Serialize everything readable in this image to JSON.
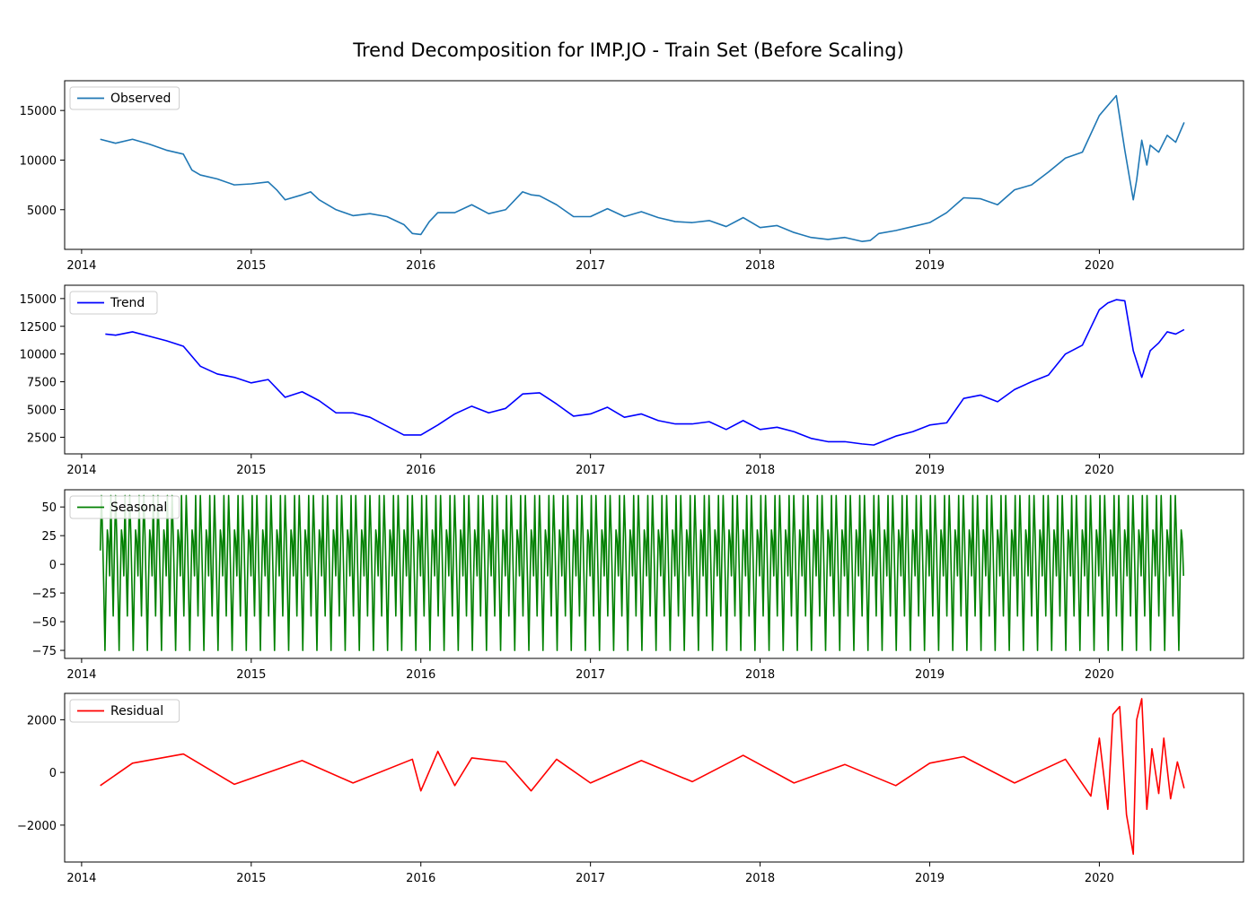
{
  "figure_title": "Trend Decomposition for IMP.JO - Train Set (Before Scaling)",
  "chart_data": [
    {
      "type": "line",
      "name": "observed",
      "legend": "Observed",
      "color": "#1f77b4",
      "xlim": [
        2013.9,
        2020.85
      ],
      "x_ticks": [
        2014,
        2015,
        2016,
        2017,
        2018,
        2019,
        2020
      ],
      "x_tick_labels": [
        "2014",
        "2015",
        "2016",
        "2017",
        "2018",
        "2019",
        "2020"
      ],
      "ylim": [
        1000,
        18000
      ],
      "y_ticks": [
        5000,
        10000,
        15000
      ],
      "y_tick_labels": [
        "5000",
        "10000",
        "15000"
      ],
      "legend_position": "upper-left",
      "x": [
        2014.11,
        2014.2,
        2014.3,
        2014.4,
        2014.5,
        2014.6,
        2014.65,
        2014.7,
        2014.8,
        2014.9,
        2015.0,
        2015.1,
        2015.15,
        2015.2,
        2015.3,
        2015.35,
        2015.4,
        2015.5,
        2015.6,
        2015.7,
        2015.8,
        2015.9,
        2015.95,
        2016.0,
        2016.05,
        2016.1,
        2016.2,
        2016.3,
        2016.4,
        2016.5,
        2016.6,
        2016.65,
        2016.7,
        2016.8,
        2016.9,
        2017.0,
        2017.1,
        2017.2,
        2017.3,
        2017.4,
        2017.5,
        2017.6,
        2017.7,
        2017.8,
        2017.9,
        2018.0,
        2018.1,
        2018.2,
        2018.3,
        2018.4,
        2018.5,
        2018.6,
        2018.65,
        2018.7,
        2018.8,
        2018.9,
        2019.0,
        2019.1,
        2019.2,
        2019.3,
        2019.4,
        2019.5,
        2019.6,
        2019.7,
        2019.8,
        2019.9,
        2020.0,
        2020.05,
        2020.1,
        2020.15,
        2020.2,
        2020.22,
        2020.25,
        2020.28,
        2020.3,
        2020.35,
        2020.4,
        2020.45,
        2020.5
      ],
      "y": [
        12100,
        11700,
        12100,
        11600,
        11000,
        10600,
        9000,
        8500,
        8100,
        7500,
        7600,
        7800,
        7000,
        6000,
        6500,
        6800,
        6000,
        5000,
        4400,
        4600,
        4300,
        3500,
        2600,
        2500,
        3800,
        4700,
        4700,
        5500,
        4600,
        5000,
        6800,
        6500,
        6400,
        5500,
        4300,
        4300,
        5100,
        4300,
        4800,
        4200,
        3800,
        3700,
        3900,
        3300,
        4200,
        3200,
        3400,
        2700,
        2200,
        2000,
        2200,
        1800,
        1900,
        2600,
        2900,
        3300,
        3700,
        4700,
        6200,
        6100,
        5500,
        7000,
        7500,
        8800,
        10200,
        10800,
        14500,
        15500,
        16500,
        11000,
        6000,
        8000,
        12000,
        9500,
        11500,
        10800,
        12500,
        11800,
        13800
      ]
    },
    {
      "type": "line",
      "name": "trend",
      "legend": "Trend",
      "color": "#0000ff",
      "xlim": [
        2013.9,
        2020.85
      ],
      "x_ticks": [
        2014,
        2015,
        2016,
        2017,
        2018,
        2019,
        2020
      ],
      "x_tick_labels": [
        "2014",
        "2015",
        "2016",
        "2017",
        "2018",
        "2019",
        "2020"
      ],
      "ylim": [
        1000,
        16200
      ],
      "y_ticks": [
        2500,
        5000,
        7500,
        10000,
        12500,
        15000
      ],
      "y_tick_labels": [
        "2500",
        "5000",
        "7500",
        "10000",
        "12500",
        "15000"
      ],
      "legend_position": "upper-left",
      "x": [
        2014.14,
        2014.2,
        2014.3,
        2014.4,
        2014.5,
        2014.6,
        2014.7,
        2014.8,
        2014.9,
        2015.0,
        2015.1,
        2015.2,
        2015.3,
        2015.4,
        2015.5,
        2015.6,
        2015.7,
        2015.8,
        2015.9,
        2016.0,
        2016.1,
        2016.2,
        2016.3,
        2016.4,
        2016.5,
        2016.6,
        2016.7,
        2016.8,
        2016.9,
        2017.0,
        2017.1,
        2017.2,
        2017.3,
        2017.4,
        2017.5,
        2017.6,
        2017.7,
        2017.8,
        2017.9,
        2018.0,
        2018.1,
        2018.2,
        2018.3,
        2018.4,
        2018.5,
        2018.6,
        2018.67,
        2018.8,
        2018.9,
        2019.0,
        2019.1,
        2019.2,
        2019.3,
        2019.4,
        2019.5,
        2019.6,
        2019.7,
        2019.8,
        2019.9,
        2020.0,
        2020.05,
        2020.1,
        2020.15,
        2020.2,
        2020.25,
        2020.3,
        2020.35,
        2020.4,
        2020.45,
        2020.5
      ],
      "y": [
        11800,
        11700,
        12000,
        11600,
        11200,
        10700,
        8900,
        8200,
        7900,
        7400,
        7700,
        6100,
        6600,
        5800,
        4700,
        4700,
        4300,
        3500,
        2700,
        2700,
        3600,
        4600,
        5300,
        4700,
        5100,
        6400,
        6500,
        5500,
        4400,
        4600,
        5200,
        4300,
        4600,
        4000,
        3700,
        3700,
        3900,
        3200,
        4000,
        3200,
        3400,
        3000,
        2400,
        2100,
        2100,
        1900,
        1800,
        2600,
        3000,
        3600,
        3800,
        6000,
        6300,
        5700,
        6800,
        7500,
        8100,
        10000,
        10800,
        14000,
        14600,
        14900,
        14800,
        10300,
        7900,
        10300,
        11000,
        12000,
        11800,
        12200
      ]
    },
    {
      "type": "line",
      "name": "seasonal",
      "legend": "Seasonal",
      "color": "#008000",
      "xlim": [
        2013.9,
        2020.85
      ],
      "x_ticks": [
        2014,
        2015,
        2016,
        2017,
        2018,
        2019,
        2020
      ],
      "x_tick_labels": [
        "2014",
        "2015",
        "2016",
        "2017",
        "2018",
        "2019",
        "2020"
      ],
      "ylim": [
        -82,
        65
      ],
      "y_ticks": [
        -75,
        -50,
        -25,
        0,
        25,
        50
      ],
      "y_tick_labels": [
        "−75",
        "−50",
        "−25",
        "0",
        "25",
        "50"
      ],
      "legend_position": "upper-left",
      "x_start": 2014.11,
      "x_end": 2020.5,
      "period_years": 0.0833,
      "cycle_values": [
        12,
        60,
        25,
        -22,
        -75,
        -15,
        30,
        20,
        -10,
        60,
        0,
        -45
      ]
    },
    {
      "type": "line",
      "name": "residual",
      "legend": "Residual",
      "color": "#ff0000",
      "xlim": [
        2013.9,
        2020.85
      ],
      "x_ticks": [
        2014,
        2015,
        2016,
        2017,
        2018,
        2019,
        2020
      ],
      "x_tick_labels": [
        "2014",
        "2015",
        "2016",
        "2017",
        "2018",
        "2019",
        "2020"
      ],
      "ylim": [
        -3400,
        3000
      ],
      "y_ticks": [
        -2000,
        0,
        2000
      ],
      "y_tick_labels": [
        "−2000",
        "0",
        "2000"
      ],
      "legend_position": "upper-left",
      "x": [
        2014.11,
        2014.3,
        2014.6,
        2014.9,
        2015.3,
        2015.6,
        2015.95,
        2016.0,
        2016.1,
        2016.2,
        2016.3,
        2016.5,
        2016.65,
        2016.8,
        2017.0,
        2017.3,
        2017.6,
        2017.9,
        2018.2,
        2018.5,
        2018.8,
        2019.0,
        2019.2,
        2019.5,
        2019.8,
        2019.95,
        2020.0,
        2020.05,
        2020.08,
        2020.12,
        2020.16,
        2020.2,
        2020.22,
        2020.25,
        2020.28,
        2020.31,
        2020.35,
        2020.38,
        2020.42,
        2020.46,
        2020.5
      ],
      "y": [
        -500,
        350,
        700,
        -450,
        450,
        -400,
        500,
        -700,
        800,
        -500,
        550,
        400,
        -700,
        500,
        -400,
        450,
        -350,
        650,
        -400,
        300,
        -500,
        350,
        600,
        -400,
        500,
        -900,
        1300,
        -1400,
        2200,
        2500,
        -1600,
        -3100,
        2000,
        2800,
        -1400,
        900,
        -800,
        1300,
        -1000,
        400,
        -600
      ]
    }
  ]
}
